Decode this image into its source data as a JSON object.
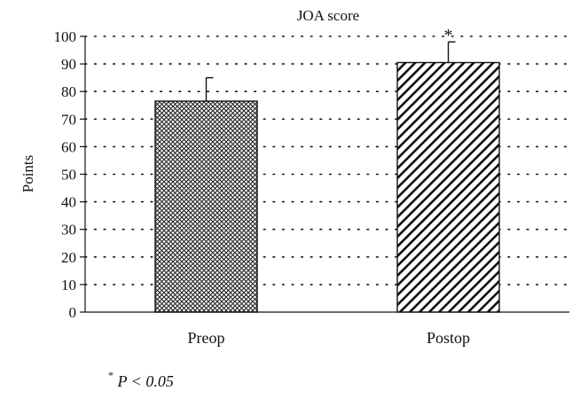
{
  "chart_data": {
    "type": "bar",
    "title": "JOA score",
    "xlabel": "",
    "ylabel": "Points",
    "categories": [
      "Preop",
      "Postop"
    ],
    "values": [
      76.5,
      90.5
    ],
    "error": [
      8.5,
      7.5
    ],
    "significance_marks": [
      "",
      "*"
    ],
    "ylim": [
      0,
      100
    ],
    "yticks": [
      0,
      10,
      20,
      30,
      40,
      50,
      60,
      70,
      80,
      90,
      100
    ],
    "grid": "dotted horizontal",
    "bar_patterns": [
      "crosshatch",
      "diagonal-stripes"
    ]
  },
  "footnote": {
    "star": "*",
    "text": "P < 0.05"
  }
}
